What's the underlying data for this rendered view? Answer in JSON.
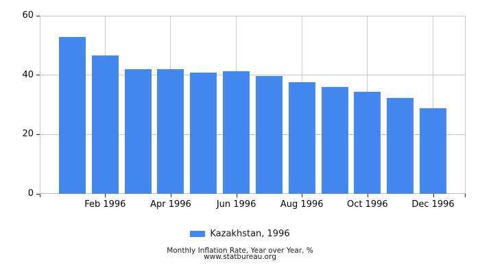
{
  "chart_data": {
    "type": "bar",
    "title": "Monthly Inflation Rate, Year over Year, %",
    "source": "www.statbureau.org",
    "legend_label": "Kazakhstan, 1996",
    "categories": [
      "Jan 1996",
      "Feb 1996",
      "Mar 1996",
      "Apr 1996",
      "May 1996",
      "Jun 1996",
      "Jul 1996",
      "Aug 1996",
      "Sep 1996",
      "Oct 1996",
      "Nov 1996",
      "Dec 1996"
    ],
    "values": [
      52.9,
      46.6,
      42.1,
      41.9,
      40.8,
      41.2,
      39.6,
      37.7,
      36.0,
      34.5,
      32.3,
      28.8
    ],
    "x_tick_labels": [
      "Feb 1996",
      "Apr 1996",
      "Jun 1996",
      "Aug 1996",
      "Oct 1996",
      "Dec 1996"
    ],
    "y_ticks": [
      0,
      20,
      40,
      60
    ],
    "ylim": [
      0,
      60
    ],
    "grid": true,
    "legend_position": "bottom",
    "bar_color": "#4388ee",
    "grid_color": "#c6c6c6",
    "tick_color": "#222222",
    "text_color": "#000000"
  }
}
